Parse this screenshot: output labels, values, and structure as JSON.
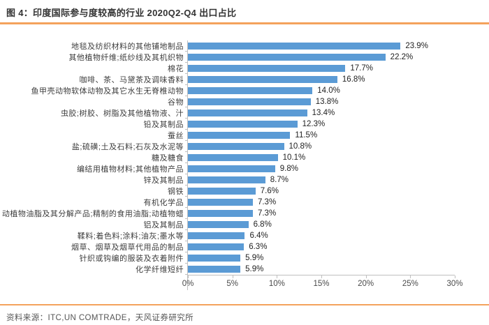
{
  "title": "图 4：印度国际参与度较高的行业 2020Q2-Q4 出口占比",
  "source": "资料来源：ITC,UN COMTRADE，天风证券研究所",
  "colors": {
    "bar": "#5B9BD5",
    "accent_orange": "#F4A25C",
    "axis_gray": "#BFBFBF"
  },
  "chart_data": {
    "type": "bar",
    "orientation": "horizontal",
    "title": "图 4：印度国际参与度较高的行业 2020Q2-Q4 出口占比",
    "xlabel": "",
    "ylabel": "",
    "xlim": [
      0,
      30
    ],
    "x_ticks": [
      "0%",
      "5%",
      "10%",
      "15%",
      "20%",
      "25%",
      "30%"
    ],
    "grid": false,
    "legend": false,
    "categories": [
      "地毯及纺织材料的其他铺地制品",
      "其他植物纤维;纸纱线及其机织物",
      "棉花",
      "咖啡、茶、马黛茶及调味香料",
      "鱼甲壳动物软体动物及其它水生无脊椎动物",
      "谷物",
      "虫胶;树胶、树脂及其他植物液、汁",
      "铅及其制品",
      "蚕丝",
      "盐;硫磺;土及石料;石灰及水泥等",
      "糖及糖食",
      "编结用植物材料;其他植物产品",
      "锌及其制品",
      "钢铁",
      "有机化学品",
      "动植物油脂及其分解产品;精制的食用油脂;动植物蜡",
      "铝及其制品",
      "鞣料;着色料;涂料;油灰;墨水等",
      "烟草、烟草及烟草代用品的制品",
      "针织或钩编的服装及衣着附件",
      "化学纤维短纤"
    ],
    "values": [
      23.9,
      22.2,
      17.7,
      16.8,
      14.0,
      13.8,
      13.4,
      12.3,
      11.5,
      10.8,
      10.1,
      9.8,
      8.7,
      7.6,
      7.3,
      7.3,
      6.8,
      6.4,
      6.3,
      5.9,
      5.9
    ],
    "value_labels": [
      "23.9%",
      "22.2%",
      "17.7%",
      "16.8%",
      "14.0%",
      "13.8%",
      "13.4%",
      "12.3%",
      "11.5%",
      "10.8%",
      "10.1%",
      "9.8%",
      "8.7%",
      "7.6%",
      "7.3%",
      "7.3%",
      "6.8%",
      "6.4%",
      "6.3%",
      "5.9%",
      "5.9%"
    ]
  }
}
